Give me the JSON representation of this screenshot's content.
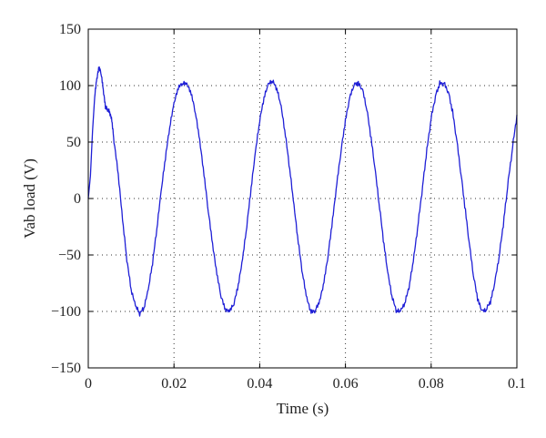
{
  "chart_data": {
    "type": "line",
    "title": "",
    "xlabel": "Time (s)",
    "ylabel": "Vab load (V)",
    "xlim": [
      0,
      0.1
    ],
    "ylim": [
      -150,
      150
    ],
    "x_ticks": [
      0,
      0.02,
      0.04,
      0.06,
      0.08,
      0.1
    ],
    "x_tick_labels": [
      "0",
      "0.02",
      "0.04",
      "0.06",
      "0.08",
      "0.1"
    ],
    "y_ticks": [
      -150,
      -100,
      -50,
      0,
      50,
      100,
      150
    ],
    "y_tick_labels": [
      "−150",
      "−100",
      "−50",
      "0",
      "50",
      "100",
      "150"
    ],
    "grid": true,
    "legend": "none",
    "line_color": "#1f1fd6",
    "series": [
      {
        "name": "",
        "amplitude_peak": 100,
        "frequency_hz": 50,
        "start_overshoot_peak": 115,
        "points": [
          [
            0.0,
            0
          ],
          [
            0.0005,
            20
          ],
          [
            0.001,
            60
          ],
          [
            0.0015,
            90
          ],
          [
            0.002,
            105
          ],
          [
            0.0025,
            115
          ],
          [
            0.003,
            110
          ],
          [
            0.0035,
            95
          ],
          [
            0.004,
            80
          ],
          [
            0.0045,
            78
          ],
          [
            0.005,
            75
          ],
          [
            0.0055,
            68
          ],
          [
            0.006,
            50
          ],
          [
            0.007,
            20
          ],
          [
            0.008,
            -20
          ],
          [
            0.009,
            -55
          ],
          [
            0.01,
            -82
          ],
          [
            0.011,
            -96
          ],
          [
            0.012,
            -103
          ],
          [
            0.013,
            -98
          ],
          [
            0.014,
            -82
          ],
          [
            0.015,
            -58
          ],
          [
            0.016,
            -28
          ],
          [
            0.017,
            5
          ],
          [
            0.018,
            35
          ],
          [
            0.019,
            62
          ],
          [
            0.02,
            83
          ],
          [
            0.021,
            97
          ],
          [
            0.022,
            101
          ],
          [
            0.023,
            100
          ],
          [
            0.024,
            92
          ],
          [
            0.025,
            75
          ],
          [
            0.026,
            50
          ],
          [
            0.027,
            20
          ],
          [
            0.028,
            -12
          ],
          [
            0.029,
            -42
          ],
          [
            0.03,
            -68
          ],
          [
            0.031,
            -88
          ],
          [
            0.032,
            -100
          ],
          [
            0.033,
            -101
          ],
          [
            0.034,
            -94
          ],
          [
            0.035,
            -78
          ],
          [
            0.036,
            -55
          ],
          [
            0.037,
            -25
          ],
          [
            0.038,
            8
          ],
          [
            0.039,
            40
          ],
          [
            0.04,
            68
          ],
          [
            0.041,
            88
          ],
          [
            0.042,
            100
          ],
          [
            0.043,
            103
          ],
          [
            0.044,
            96
          ],
          [
            0.045,
            80
          ],
          [
            0.046,
            55
          ],
          [
            0.047,
            25
          ],
          [
            0.048,
            -8
          ],
          [
            0.049,
            -40
          ],
          [
            0.05,
            -68
          ],
          [
            0.051,
            -90
          ],
          [
            0.052,
            -102
          ],
          [
            0.053,
            -100
          ],
          [
            0.054,
            -92
          ],
          [
            0.055,
            -75
          ],
          [
            0.056,
            -50
          ],
          [
            0.057,
            -20
          ],
          [
            0.058,
            12
          ],
          [
            0.059,
            42
          ],
          [
            0.06,
            68
          ],
          [
            0.061,
            88
          ],
          [
            0.062,
            100
          ],
          [
            0.063,
            101
          ],
          [
            0.064,
            95
          ],
          [
            0.065,
            78
          ],
          [
            0.066,
            52
          ],
          [
            0.067,
            22
          ],
          [
            0.068,
            -10
          ],
          [
            0.069,
            -42
          ],
          [
            0.07,
            -70
          ],
          [
            0.071,
            -90
          ],
          [
            0.072,
            -101
          ],
          [
            0.073,
            -100
          ],
          [
            0.074,
            -92
          ],
          [
            0.075,
            -76
          ],
          [
            0.076,
            -52
          ],
          [
            0.077,
            -22
          ],
          [
            0.078,
            10
          ],
          [
            0.079,
            42
          ],
          [
            0.08,
            70
          ],
          [
            0.081,
            90
          ],
          [
            0.082,
            101
          ],
          [
            0.083,
            101
          ],
          [
            0.084,
            94
          ],
          [
            0.085,
            76
          ],
          [
            0.086,
            50
          ],
          [
            0.087,
            20
          ],
          [
            0.088,
            -12
          ],
          [
            0.089,
            -44
          ],
          [
            0.09,
            -72
          ],
          [
            0.091,
            -92
          ],
          [
            0.092,
            -101
          ],
          [
            0.093,
            -98
          ],
          [
            0.094,
            -90
          ],
          [
            0.095,
            -72
          ],
          [
            0.096,
            -48
          ],
          [
            0.097,
            -18
          ],
          [
            0.098,
            15
          ],
          [
            0.099,
            45
          ],
          [
            0.1,
            74
          ]
        ]
      }
    ]
  }
}
